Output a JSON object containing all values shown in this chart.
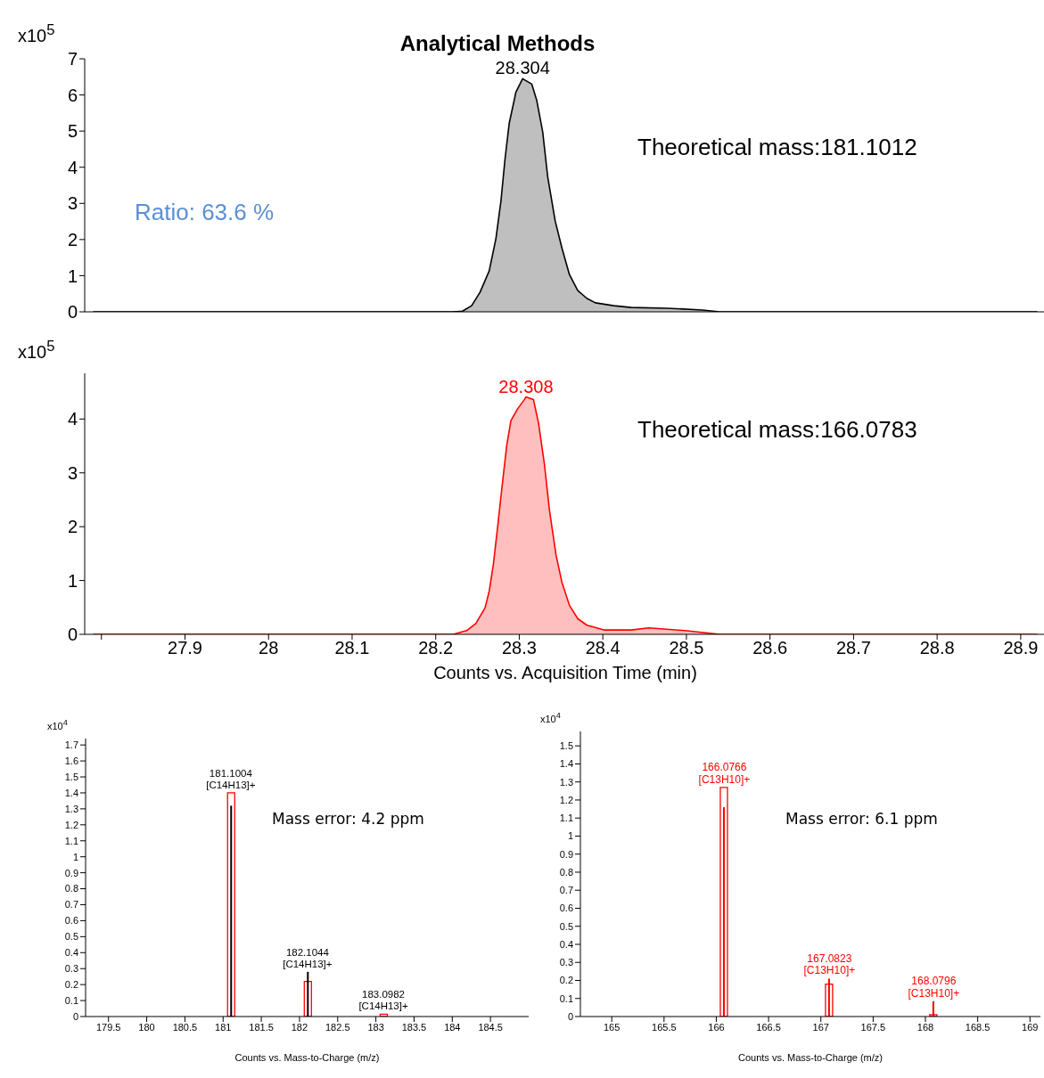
{
  "chart_data": [
    {
      "type": "area",
      "title": "Analytical Methods",
      "ylabel": "x10$^{5}$",
      "xlim": [
        27.78,
        28.93
      ],
      "ylim": [
        0,
        7
      ],
      "yticks": [
        0,
        1,
        2,
        3,
        4,
        5,
        6,
        7
      ],
      "tick_labels": "y",
      "legend": false,
      "grid": false,
      "x": [
        27.79,
        28.22,
        28.232,
        28.243,
        28.253,
        28.264,
        28.272,
        28.278,
        28.283,
        28.288,
        28.296,
        28.304,
        28.315,
        28.321,
        28.328,
        28.334,
        28.343,
        28.351,
        28.36,
        28.37,
        28.381,
        28.391,
        28.413,
        28.434,
        28.477,
        28.519,
        28.54,
        28.92
      ],
      "series": [
        {
          "color": "#000000",
          "values": [
            0,
            0,
            0.02,
            0.17,
            0.54,
            1.13,
            2.02,
            3.05,
            4.24,
            5.22,
            6.08,
            6.45,
            6.3,
            5.84,
            4.98,
            3.74,
            2.51,
            1.77,
            1.03,
            0.59,
            0.37,
            0.25,
            0.17,
            0.12,
            0.1,
            0.05,
            0,
            0
          ]
        }
      ],
      "annotations": [
        "Theoretical mass:181.1012",
        "Ratio: 63.6 %",
        {
          "text": "28.304",
          "x": 28.304,
          "y": 6.45
        }
      ]
    },
    {
      "type": "area",
      "ylabel": "x10$^{5}$",
      "xlabel": "Counts vs. Acquisition Time (min)",
      "xlim": [
        27.78,
        28.93
      ],
      "xticks": [
        {
          "value": 27.8,
          "label": null
        },
        27.9,
        28,
        28.1,
        28.2,
        28.3,
        28.4,
        28.5,
        28.6,
        28.7,
        28.8,
        28.9
      ],
      "ylim": [
        0,
        4.85
      ],
      "yticks": [
        0,
        1,
        2,
        3,
        4
      ],
      "legend": false,
      "grid": false,
      "x": [
        27.79,
        28.221,
        28.237,
        28.248,
        28.259,
        28.264,
        28.269,
        28.274,
        28.28,
        28.285,
        28.29,
        28.298,
        28.306,
        28.308,
        28.317,
        28.323,
        28.33,
        28.336,
        28.344,
        28.351,
        28.36,
        28.37,
        28.381,
        28.402,
        28.434,
        28.455,
        28.498,
        28.54,
        28.92
      ],
      "series": [
        {
          "color": "#ff0000",
          "values": [
            0,
            0,
            0.07,
            0.2,
            0.49,
            0.8,
            1.3,
            1.98,
            2.83,
            3.51,
            3.97,
            4.19,
            4.36,
            4.41,
            4.36,
            3.93,
            3.17,
            2.32,
            1.47,
            0.97,
            0.54,
            0.29,
            0.17,
            0.08,
            0.08,
            0.12,
            0.07,
            0,
            0
          ]
        }
      ],
      "annotations": [
        "Theoretical mass:166.0783",
        {
          "text": "28.308",
          "x": 28.308,
          "y": 4.41
        }
      ]
    },
    {
      "type": "bar",
      "ylabel": "x10$^{4}$",
      "xlabel": "Counts vs. Mass-to-Charge (m/z)",
      "xlim": [
        179.2,
        185
      ],
      "xticks": [
        179.5,
        180,
        180.5,
        181,
        181.5,
        182,
        182.5,
        183,
        183.5,
        184,
        184.5
      ],
      "ylim": [
        0,
        1.74
      ],
      "yticks": [
        0,
        0.1,
        0.2,
        0.3,
        0.4,
        0.5,
        0.6,
        0.7,
        0.8,
        0.9,
        1,
        1.1,
        1.2,
        1.3,
        1.4,
        1.5,
        1.6,
        1.7
      ],
      "legend": false,
      "grid": false,
      "x": [
        181.1004,
        182.1044,
        183.0982
      ],
      "series": [
        {
          "color": "#ff0000",
          "values": [
            1.4,
            0.22,
            0.015
          ]
        },
        {
          "color": "#000000",
          "values": [
            1.32,
            0.28,
            null
          ]
        }
      ],
      "annotations": [
        "Mass error: 4.2 ppm",
        {
          "text": "181.1004\n[C14H13]+",
          "x": 181.1004,
          "y": 1.4
        },
        {
          "text": "182.1044\n[C14H13]+",
          "x": 182.1044,
          "y": 0.28
        },
        {
          "text": "183.0982\n[C14H13]+",
          "x": 183.0982,
          "y": 0.015
        }
      ]
    },
    {
      "type": "bar",
      "ylabel": "x10$^{4}$",
      "xlabel": "Counts vs. Mass-to-Charge (m/z)",
      "xlim": [
        164.7,
        169.1
      ],
      "xticks": [
        165,
        165.5,
        166,
        166.5,
        167,
        167.5,
        168,
        168.5,
        169
      ],
      "ylim": [
        0,
        1.58
      ],
      "yticks": [
        0,
        0.1,
        0.2,
        0.3,
        0.4,
        0.5,
        0.6,
        0.7,
        0.8,
        0.9,
        1,
        1.1,
        1.2,
        1.3,
        1.4,
        1.5
      ],
      "legend": false,
      "grid": false,
      "x": [
        166.0766,
        167.0823,
        168.0796
      ],
      "series": [
        {
          "color": "#ff0000",
          "values": [
            1.27,
            0.18,
            0.01
          ]
        },
        {
          "color": "#ff0000",
          "values": [
            1.16,
            0.21,
            0.085
          ]
        }
      ],
      "annotations": [
        "Mass error: 6.1 ppm",
        {
          "text": "166.0766\n[C13H10]+",
          "x": 166.0766,
          "y": 1.27
        },
        {
          "text": "167.0823\n[C13H10]+",
          "x": 167.0823,
          "y": 0.21
        },
        {
          "text": "168.0796\n[C13H10]+",
          "x": 168.0796,
          "y": 0.085
        }
      ]
    }
  ]
}
